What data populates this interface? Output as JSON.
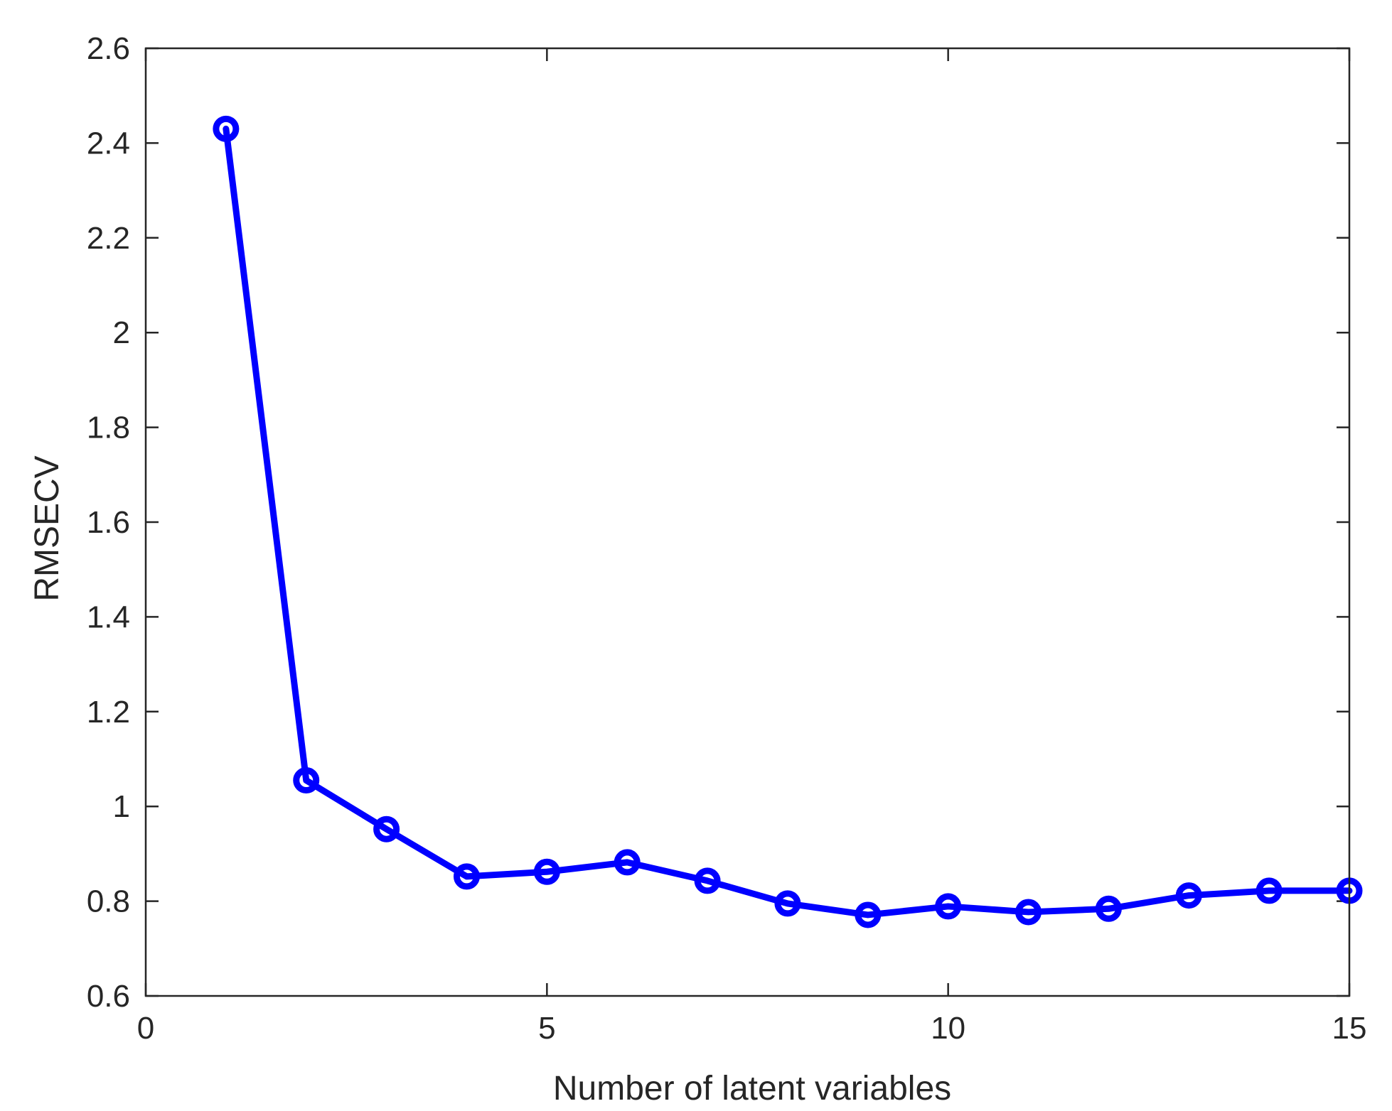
{
  "chart_data": {
    "type": "line",
    "title": "",
    "xlabel": "Number of latent variables",
    "ylabel": "RMSECV",
    "xlim": [
      0,
      15
    ],
    "ylim": [
      0.6,
      2.6
    ],
    "xticks": [
      0,
      5,
      10,
      15
    ],
    "xtick_labels": [
      "0",
      "5",
      "10",
      "15"
    ],
    "yticks": [
      0.6,
      0.8,
      1.0,
      1.2,
      1.4,
      1.6,
      1.8,
      2.0,
      2.2,
      2.4,
      2.6
    ],
    "ytick_labels": [
      "0.6",
      "0.8",
      "1",
      "1.2",
      "1.4",
      "1.6",
      "1.8",
      "2",
      "2.2",
      "2.4",
      "2.6"
    ],
    "grid": false,
    "legend": "none",
    "series": [
      {
        "color": "#0000ff",
        "marker": "circle",
        "x": [
          1,
          2,
          3,
          4,
          5,
          6,
          7,
          8,
          9,
          10,
          11,
          12,
          13,
          14,
          15
        ],
        "y": [
          2.43,
          1.055,
          0.952,
          0.852,
          0.862,
          0.882,
          0.843,
          0.795,
          0.771,
          0.789,
          0.777,
          0.784,
          0.812,
          0.822,
          0.822
        ]
      }
    ]
  }
}
